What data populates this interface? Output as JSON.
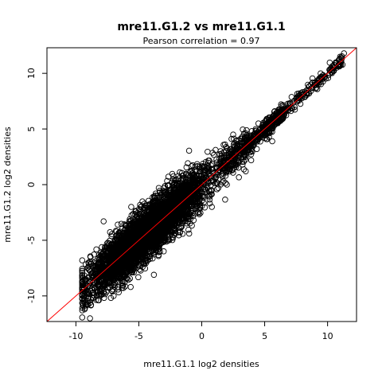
{
  "chart_data": {
    "type": "scatter",
    "title": "mre11.G1.2 vs mre11.G1.1",
    "subtitle": "Pearson correlation =  0.97",
    "xlabel": "mre11.G1.1 log2 densities",
    "ylabel": "mre11.G1.2 log2 densities",
    "xlim": [
      -12.3,
      12.3
    ],
    "ylim": [
      -12.3,
      12.3
    ],
    "x_ticks": [
      -10,
      -5,
      0,
      5,
      10
    ],
    "y_ticks": [
      -10,
      -5,
      0,
      5,
      10
    ],
    "x_tick_labels": [
      "-10",
      "-5",
      "0",
      "5",
      "10"
    ],
    "y_tick_labels": [
      "-10",
      "-5",
      "0",
      "5",
      "10"
    ],
    "grid": false,
    "legend": "none",
    "point_color": "#000000",
    "reference_line": {
      "slope": 1,
      "intercept": 0,
      "color": "#ff0000"
    },
    "series": [
      {
        "point_count": 5000,
        "x_range": [
          -9.5,
          11.3
        ],
        "y_range": [
          -11.3,
          11.8
        ],
        "points_sample": [
          [
            -9.5,
            -11.3
          ],
          [
            -9.3,
            -11.2
          ],
          [
            -8.5,
            -8.8
          ],
          [
            -8.9,
            -9.1
          ],
          [
            -9.0,
            -7.0
          ],
          [
            -8.2,
            -6.6
          ],
          [
            -7.8,
            -3.3
          ],
          [
            -7.5,
            -5.5
          ],
          [
            -7.0,
            -10.0
          ],
          [
            -6.0,
            -8.0
          ],
          [
            -6.8,
            -4.6
          ],
          [
            -6.3,
            -6.0
          ],
          [
            -5.6,
            -2.0
          ],
          [
            -5.0,
            -3.8
          ],
          [
            -4.7,
            -7.4
          ],
          [
            -4.0,
            -2.0
          ],
          [
            -3.8,
            -8.1
          ],
          [
            -3.0,
            -0.8
          ],
          [
            -2.5,
            -4.2
          ],
          [
            -1.5,
            0.5
          ],
          [
            -1.0,
            -4.4
          ],
          [
            -0.2,
            1.6
          ],
          [
            0.0,
            -1.0
          ],
          [
            0.8,
            -2.0
          ],
          [
            1.5,
            3.0
          ],
          [
            2.0,
            0.0
          ],
          [
            2.5,
            4.5
          ],
          [
            3.0,
            3.5
          ],
          [
            3.5,
            1.2
          ],
          [
            4.0,
            4.0
          ],
          [
            4.5,
            5.5
          ],
          [
            5.0,
            5.0
          ],
          [
            5.6,
            3.9
          ],
          [
            6.0,
            6.3
          ],
          [
            6.5,
            7.0
          ],
          [
            7.0,
            7.2
          ],
          [
            7.5,
            7.7
          ],
          [
            8.0,
            8.3
          ],
          [
            8.5,
            8.5
          ],
          [
            9.0,
            9.0
          ],
          [
            9.8,
            9.7
          ],
          [
            10.3,
            10.1
          ],
          [
            11.0,
            11.5
          ],
          [
            11.3,
            11.8
          ]
        ]
      }
    ]
  }
}
